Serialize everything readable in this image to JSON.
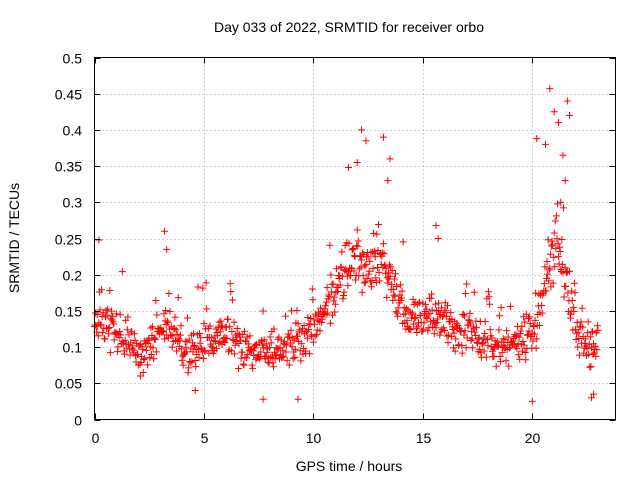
{
  "chart_data": {
    "type": "scatter",
    "title": "Day 033 of 2022, SRMTID for receiver orbo",
    "xlabel": "GPS time / hours",
    "ylabel": "SRMTID / TECUs",
    "xlim": [
      0,
      23.8
    ],
    "ylim": [
      0,
      0.5
    ],
    "grid": true,
    "marker": "+",
    "series_color": "#ff0000",
    "x_ticks": [
      0,
      5,
      10,
      15,
      20
    ],
    "x_tick_labels": [
      "0",
      "5",
      "10",
      "15",
      "20"
    ],
    "y_ticks": [
      0,
      0.05,
      0.1,
      0.15,
      0.2,
      0.25,
      0.3,
      0.35,
      0.4,
      0.45,
      0.5
    ],
    "y_tick_labels": [
      "0",
      "0.05",
      "0.1",
      "0.15",
      "0.2",
      "0.25",
      "0.3",
      "0.35",
      "0.4",
      "0.45",
      "0.5"
    ],
    "series": [
      {
        "name": "SRMTID",
        "x_range": [
          0,
          23
        ],
        "x_step": 0.025,
        "profile": [
          [
            0.0,
            0.135
          ],
          [
            0.5,
            0.13
          ],
          [
            1.0,
            0.12
          ],
          [
            1.5,
            0.11
          ],
          [
            2.0,
            0.095
          ],
          [
            2.5,
            0.1
          ],
          [
            3.0,
            0.12
          ],
          [
            3.3,
            0.14
          ],
          [
            3.7,
            0.12
          ],
          [
            4.0,
            0.1
          ],
          [
            4.5,
            0.095
          ],
          [
            5.0,
            0.1
          ],
          [
            5.5,
            0.11
          ],
          [
            6.0,
            0.115
          ],
          [
            6.5,
            0.11
          ],
          [
            7.0,
            0.1
          ],
          [
            7.5,
            0.09
          ],
          [
            8.0,
            0.09
          ],
          [
            8.5,
            0.1
          ],
          [
            9.0,
            0.105
          ],
          [
            9.5,
            0.115
          ],
          [
            10.0,
            0.125
          ],
          [
            10.5,
            0.15
          ],
          [
            11.0,
            0.175
          ],
          [
            11.5,
            0.2
          ],
          [
            12.0,
            0.22
          ],
          [
            12.5,
            0.2
          ],
          [
            13.0,
            0.23
          ],
          [
            13.5,
            0.19
          ],
          [
            14.0,
            0.15
          ],
          [
            14.5,
            0.14
          ],
          [
            15.0,
            0.135
          ],
          [
            15.5,
            0.14
          ],
          [
            16.0,
            0.135
          ],
          [
            16.5,
            0.12
          ],
          [
            17.0,
            0.12
          ],
          [
            17.5,
            0.11
          ],
          [
            18.0,
            0.1
          ],
          [
            18.5,
            0.1
          ],
          [
            19.0,
            0.105
          ],
          [
            19.5,
            0.11
          ],
          [
            20.0,
            0.115
          ],
          [
            20.5,
            0.17
          ],
          [
            21.0,
            0.24
          ],
          [
            21.5,
            0.2
          ],
          [
            22.0,
            0.12
          ],
          [
            22.5,
            0.1
          ],
          [
            23.0,
            0.1
          ]
        ],
        "spread": 0.045,
        "notable_points": [
          [
            0.2,
            0.248
          ],
          [
            3.2,
            0.26
          ],
          [
            3.3,
            0.235
          ],
          [
            11.6,
            0.348
          ],
          [
            12.0,
            0.355
          ],
          [
            12.2,
            0.4
          ],
          [
            12.4,
            0.385
          ],
          [
            13.2,
            0.39
          ],
          [
            13.5,
            0.36
          ],
          [
            13.4,
            0.33
          ],
          [
            20.2,
            0.388
          ],
          [
            20.6,
            0.38
          ],
          [
            20.8,
            0.457
          ],
          [
            21.0,
            0.425
          ],
          [
            21.2,
            0.41
          ],
          [
            21.6,
            0.44
          ],
          [
            21.7,
            0.42
          ],
          [
            21.4,
            0.365
          ],
          [
            21.5,
            0.33
          ],
          [
            21.3,
            0.3
          ],
          [
            15.6,
            0.268
          ],
          [
            15.7,
            0.25
          ],
          [
            7.7,
            0.028
          ],
          [
            9.3,
            0.028
          ],
          [
            20.0,
            0.025
          ],
          [
            22.7,
            0.03
          ],
          [
            22.8,
            0.035
          ],
          [
            2.1,
            0.06
          ],
          [
            4.6,
            0.04
          ]
        ],
        "seed": 33
      }
    ]
  }
}
